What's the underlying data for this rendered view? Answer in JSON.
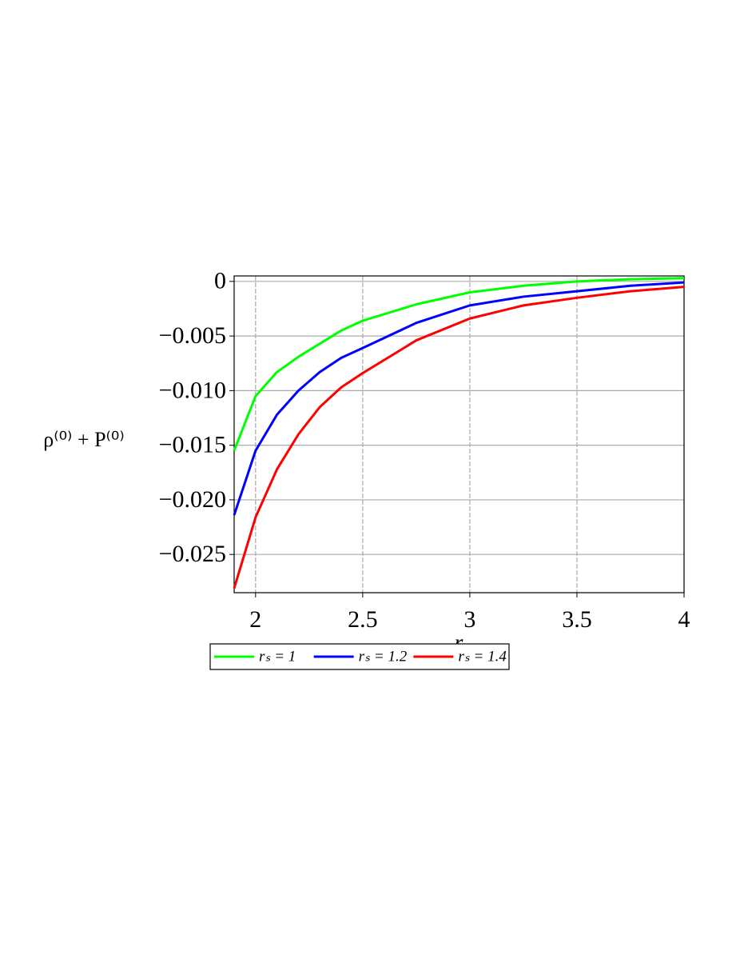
{
  "chart_data": {
    "type": "line",
    "x_label": "r",
    "y_label": "ρ⁽⁰⁾ + P⁽⁰⁾",
    "x": [
      1.9,
      2.0,
      2.1,
      2.2,
      2.3,
      2.4,
      2.5,
      2.75,
      3.0,
      3.25,
      3.5,
      3.75,
      4.0
    ],
    "series": [
      {
        "name": "rₛ = 1",
        "color": "#00ff00",
        "values": [
          -0.0155,
          -0.0105,
          -0.0083,
          -0.0069,
          -0.0057,
          -0.0045,
          -0.0036,
          -0.0021,
          -0.001,
          -0.0004,
          0.0,
          0.0002,
          0.0003
        ]
      },
      {
        "name": "rₛ = 1.2",
        "color": "#0000ff",
        "values": [
          -0.0214,
          -0.0155,
          -0.0122,
          -0.01,
          -0.0083,
          -0.007,
          -0.0061,
          -0.0038,
          -0.0022,
          -0.0014,
          -0.0009,
          -0.0004,
          -0.0001
        ]
      },
      {
        "name": "rₛ = 1.4",
        "color": "#ff0000",
        "values": [
          -0.0281,
          -0.0216,
          -0.0172,
          -0.014,
          -0.0115,
          -0.0097,
          -0.0084,
          -0.0054,
          -0.0034,
          -0.0022,
          -0.0015,
          -0.0009,
          -0.0005
        ]
      }
    ],
    "xlim": [
      1.9,
      4.0
    ],
    "ylim": [
      -0.0285,
      0.0005
    ],
    "xticks": [
      2,
      2.5,
      3,
      3.5,
      4
    ],
    "yticks": [
      0,
      {
        "value": -0.005,
        "label": "−0.005"
      },
      {
        "value": -0.01,
        "label": "−0.010"
      },
      {
        "value": -0.015,
        "label": "−0.015"
      },
      {
        "value": -0.02,
        "label": "−0.020"
      },
      {
        "value": -0.025,
        "label": "−0.025"
      }
    ],
    "grid": true,
    "legend": "bottom"
  }
}
